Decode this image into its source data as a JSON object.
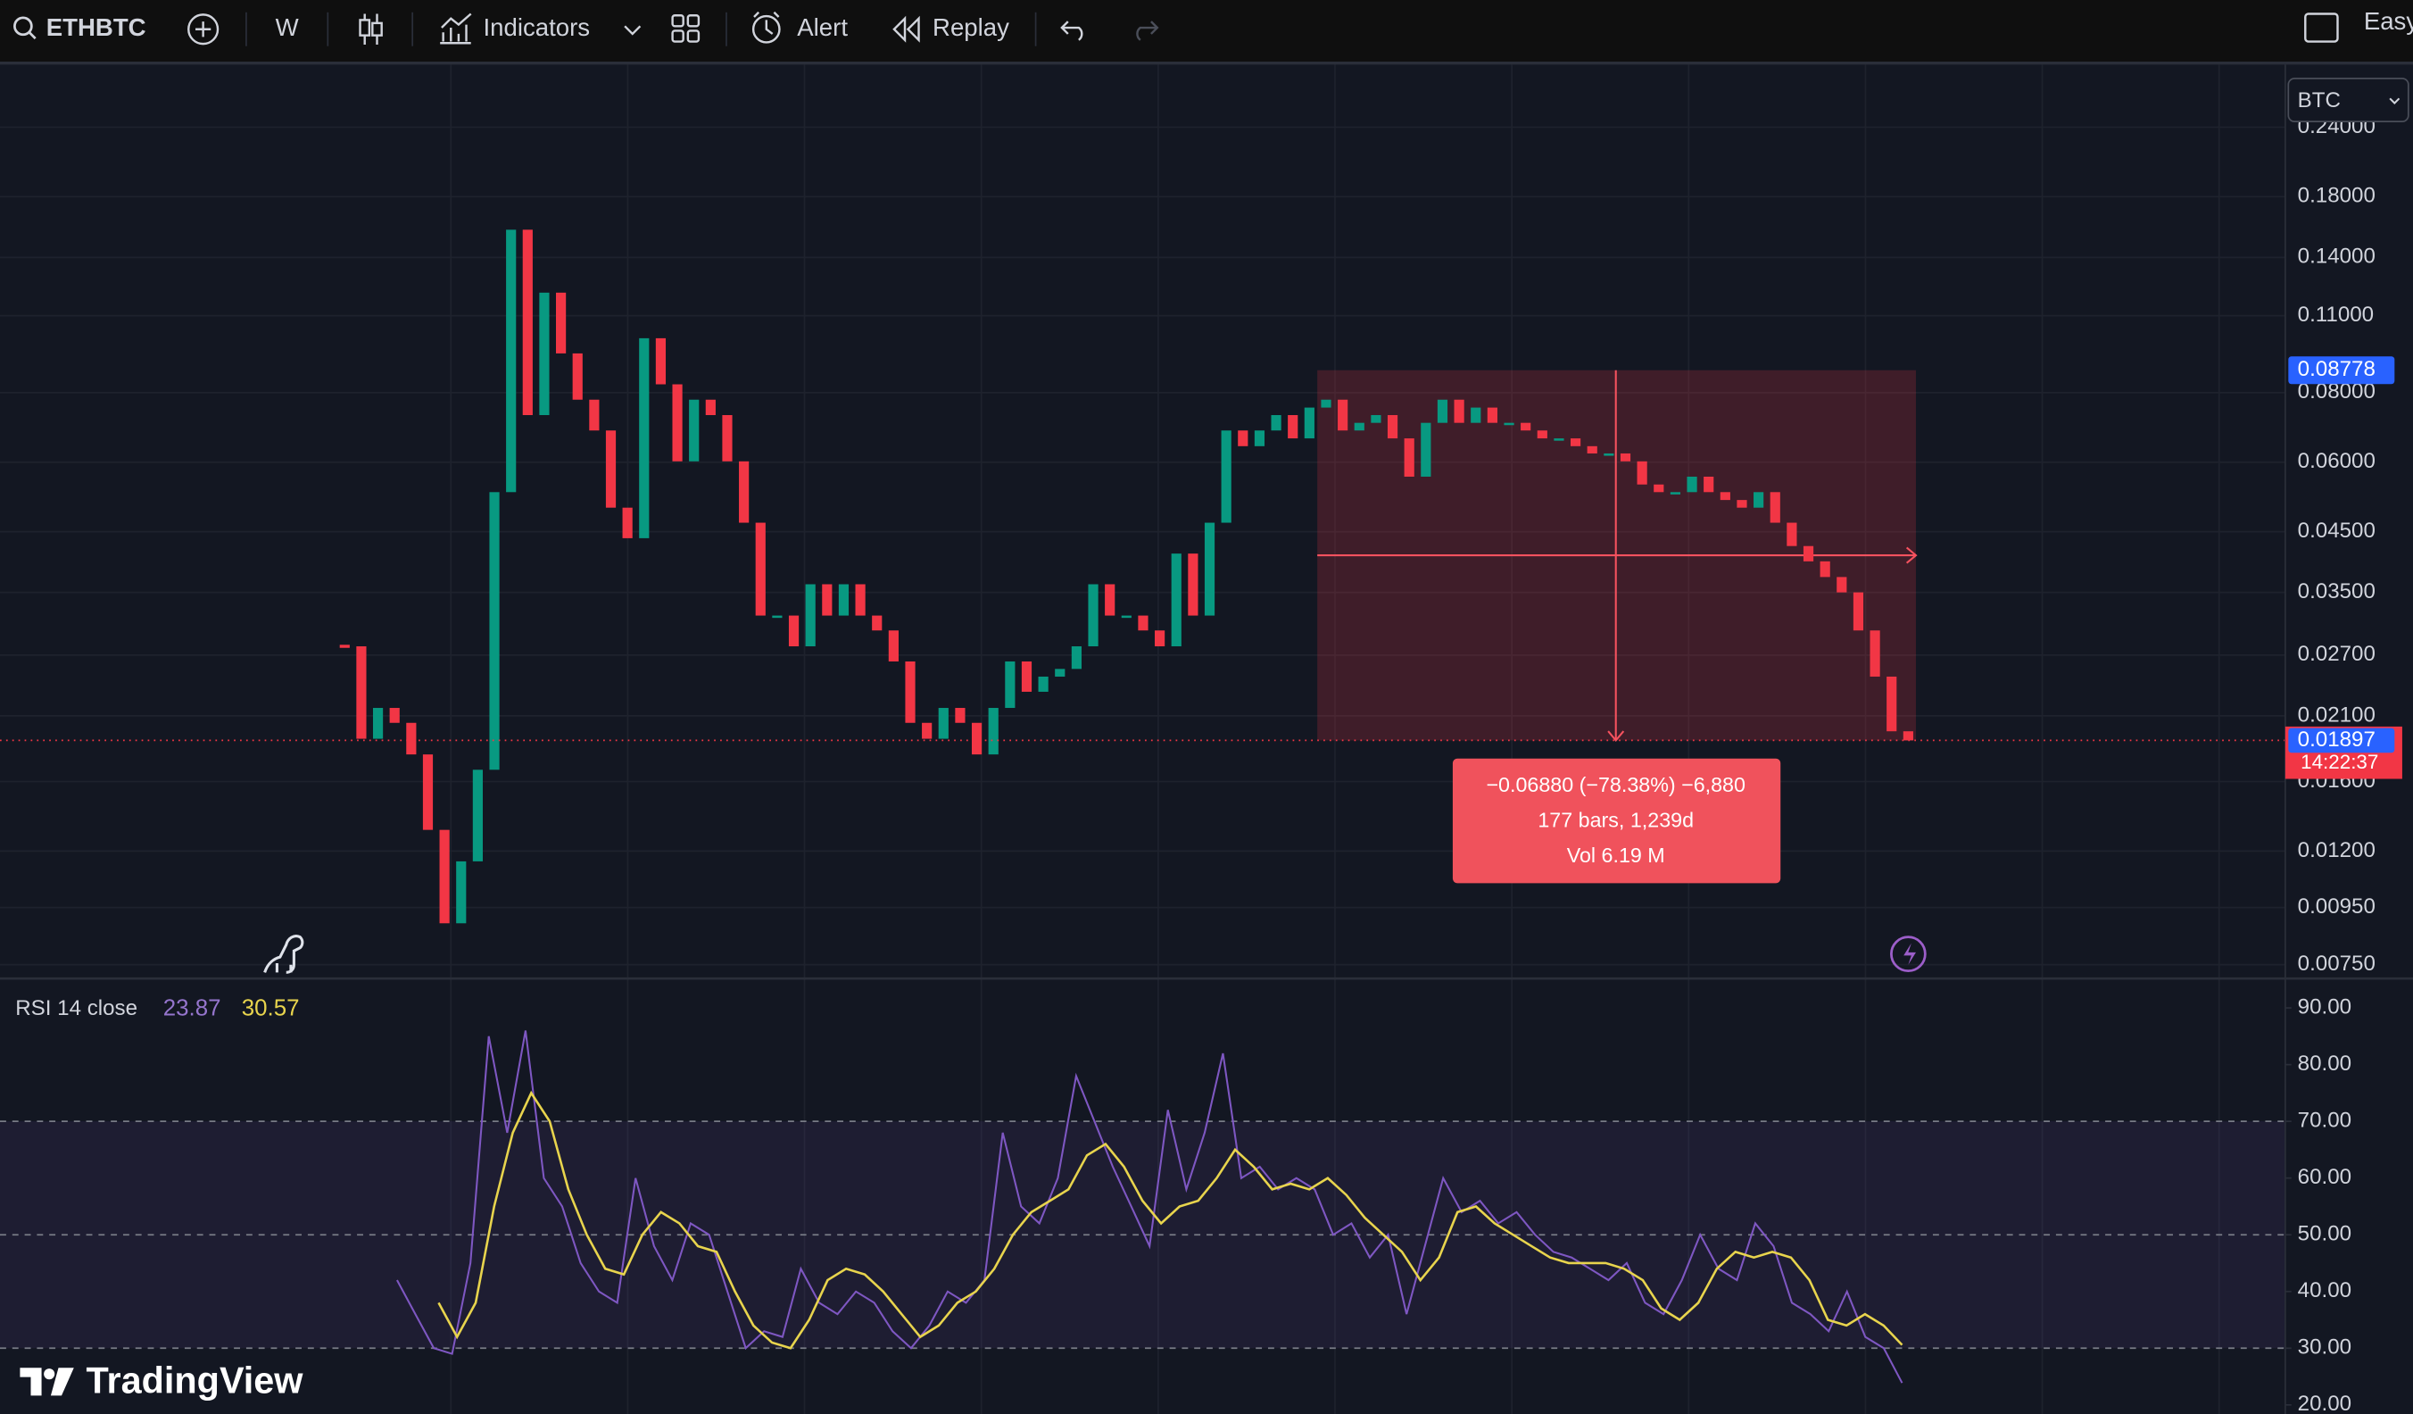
{
  "toolbar": {
    "symbol": "ETHBTC",
    "interval": "W",
    "indicators": "Indicators",
    "alert": "Alert",
    "replay": "Replay",
    "layout_label": "Easy"
  },
  "chart_data": [
    {
      "type": "candlestick",
      "currency": "BTC",
      "log_scale": true,
      "grid": true,
      "ylim": [
        0.00708,
        0.305
      ],
      "yticks": [
        {
          "value": 0.24,
          "label": "0.24000"
        },
        {
          "value": 0.18,
          "label": "0.18000"
        },
        {
          "value": 0.14,
          "label": "0.14000"
        },
        {
          "value": 0.11,
          "label": "0.11000"
        },
        {
          "value": 0.08,
          "label": "0.08000"
        },
        {
          "value": 0.06,
          "label": "0.06000"
        },
        {
          "value": 0.045,
          "label": "0.04500"
        },
        {
          "value": 0.035,
          "label": "0.03500"
        },
        {
          "value": 0.027,
          "label": "0.02700"
        },
        {
          "value": 0.021,
          "label": "0.02100"
        },
        {
          "value": 0.016,
          "label": "0.01600"
        },
        {
          "value": 0.012,
          "label": "0.01200"
        },
        {
          "value": 0.0095,
          "label": "0.00950"
        },
        {
          "value": 0.0075,
          "label": "0.00750"
        }
      ],
      "up_color": "#089981",
      "down_color": "#f23645",
      "closes": [
        0.028,
        0.0191,
        0.0217,
        0.0204,
        0.0179,
        0.0131,
        0.0089,
        0.0115,
        0.0168,
        0.053,
        0.157,
        0.0729,
        0.121,
        0.0941,
        0.0777,
        0.0684,
        0.0497,
        0.0438,
        0.1002,
        0.0828,
        0.0602,
        0.0777,
        0.0729,
        0.0602,
        0.0467,
        0.0318,
        0.0318,
        0.028,
        0.0362,
        0.0318,
        0.0362,
        0.0318,
        0.0299,
        0.0263,
        0.0204,
        0.0191,
        0.0217,
        0.0204,
        0.0179,
        0.0217,
        0.0263,
        0.0232,
        0.0247,
        0.0255,
        0.028,
        0.0362,
        0.0318,
        0.0318,
        0.0299,
        0.028,
        0.0411,
        0.0318,
        0.0467,
        0.0684,
        0.0641,
        0.0684,
        0.0729,
        0.0662,
        0.0752,
        0.0777,
        0.0684,
        0.0706,
        0.0729,
        0.0662,
        0.0565,
        0.0706,
        0.0777,
        0.0706,
        0.0752,
        0.0706,
        0.0706,
        0.0684,
        0.0662,
        0.0662,
        0.0641,
        0.0622,
        0.0622,
        0.0602,
        0.0547,
        0.053,
        0.053,
        0.0565,
        0.053,
        0.0513,
        0.0497,
        0.053,
        0.0467,
        0.0424,
        0.0398,
        0.0373,
        0.035,
        0.0299,
        0.0247,
        0.0197,
        0.01897
      ],
      "countdown": "14:22:37"
    },
    {
      "type": "line",
      "title": "RSI 14 close",
      "grid": true,
      "ylim": [
        18.4,
        94.9
      ],
      "yticks": [
        {
          "value": 90,
          "label": "90.00"
        },
        {
          "value": 80,
          "label": "80.00"
        },
        {
          "value": 70,
          "label": "70.00"
        },
        {
          "value": 60,
          "label": "60.00"
        },
        {
          "value": 50,
          "label": "50.00"
        },
        {
          "value": 40,
          "label": "40.00"
        },
        {
          "value": 30,
          "label": "30.00"
        },
        {
          "value": 20,
          "label": "20.00"
        }
      ],
      "bands": [
        70,
        50,
        30
      ],
      "series": [
        {
          "color": "#7e57c2",
          "values": [
            42,
            36,
            30,
            29,
            45,
            85,
            68,
            86,
            60,
            55,
            45,
            40,
            38,
            60,
            48,
            42,
            52,
            50,
            40,
            30,
            33,
            32,
            44,
            38,
            36,
            40,
            38,
            33,
            30,
            34,
            40,
            38,
            42,
            68,
            55,
            52,
            60,
            78,
            70,
            62,
            55,
            48,
            72,
            58,
            68,
            82,
            60,
            62,
            58,
            60,
            58,
            50,
            52,
            46,
            50,
            36,
            48,
            60,
            54,
            56,
            52,
            54,
            50,
            47,
            46,
            44,
            42,
            45,
            38,
            36,
            42,
            50,
            44,
            42,
            52,
            48,
            38,
            36,
            33,
            40,
            32,
            30,
            23.87
          ]
        },
        {
          "color": "#e8d44d",
          "values": [
            38,
            32,
            38,
            55,
            68,
            75,
            70,
            58,
            50,
            44,
            43,
            50,
            54,
            52,
            48,
            47,
            40,
            34,
            31,
            30,
            35,
            42,
            44,
            43,
            40,
            36,
            32,
            34,
            38,
            40,
            44,
            50,
            54,
            56,
            58,
            64,
            66,
            62,
            56,
            52,
            55,
            56,
            60,
            65,
            62,
            58,
            59,
            58,
            60,
            57,
            53,
            50,
            47,
            42,
            46,
            54,
            55,
            52,
            50,
            48,
            46,
            45,
            45,
            45,
            44,
            42,
            37,
            35,
            38,
            44,
            47,
            46,
            47,
            46,
            42,
            35,
            34,
            36,
            34,
            30.57
          ]
        }
      ]
    }
  ],
  "measure": {
    "start_price": 0.08778,
    "change": "−0.06880 (−78.38%) −6,880",
    "span": "177 bars, 1,239d",
    "volume": "Vol 6.19 M"
  },
  "brand": "TradingView"
}
